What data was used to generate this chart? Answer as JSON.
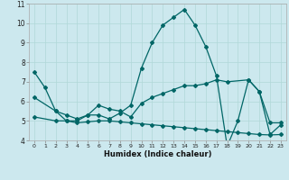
{
  "xlabel": "Humidex (Indice chaleur)",
  "bg_color": "#cce8ee",
  "line_color": "#006666",
  "grid_color": "#b0d8d8",
  "xlim": [
    -0.5,
    23.5
  ],
  "ylim": [
    4,
    11
  ],
  "yticks": [
    4,
    5,
    6,
    7,
    8,
    9,
    10,
    11
  ],
  "xticks": [
    0,
    1,
    2,
    3,
    4,
    5,
    6,
    7,
    8,
    9,
    10,
    11,
    12,
    13,
    14,
    15,
    16,
    17,
    18,
    19,
    20,
    21,
    22,
    23
  ],
  "curve1_x": [
    0,
    1,
    2,
    3,
    4,
    5,
    6,
    7,
    8,
    9,
    10,
    11,
    12,
    13,
    14,
    15,
    16,
    17,
    18,
    19,
    20,
    21,
    22,
    23
  ],
  "curve1_y": [
    7.5,
    6.7,
    5.5,
    5.0,
    5.0,
    5.3,
    5.3,
    5.1,
    5.4,
    5.8,
    7.7,
    9.0,
    9.9,
    10.3,
    10.7,
    9.9,
    8.8,
    7.3,
    3.7,
    5.0,
    7.1,
    6.5,
    4.3,
    4.8
  ],
  "curve2_x": [
    0,
    2,
    3,
    4,
    5,
    6,
    7,
    8,
    9,
    10,
    11,
    12,
    13,
    14,
    15,
    16,
    17,
    18,
    20,
    21,
    22,
    23
  ],
  "curve2_y": [
    6.2,
    5.5,
    5.3,
    5.1,
    5.3,
    5.8,
    5.6,
    5.5,
    5.2,
    5.9,
    6.2,
    6.4,
    6.6,
    6.8,
    6.8,
    6.9,
    7.1,
    7.0,
    7.1,
    6.5,
    4.9,
    4.9
  ],
  "curve3_x": [
    0,
    2,
    3,
    4,
    5,
    6,
    7,
    8,
    9,
    10,
    11,
    12,
    13,
    14,
    15,
    16,
    17,
    18,
    19,
    20,
    21,
    22,
    23
  ],
  "curve3_y": [
    5.2,
    5.0,
    5.0,
    4.9,
    4.95,
    5.0,
    5.0,
    4.95,
    4.9,
    4.85,
    4.8,
    4.75,
    4.7,
    4.65,
    4.6,
    4.55,
    4.5,
    4.45,
    4.4,
    4.35,
    4.3,
    4.28,
    4.3
  ]
}
